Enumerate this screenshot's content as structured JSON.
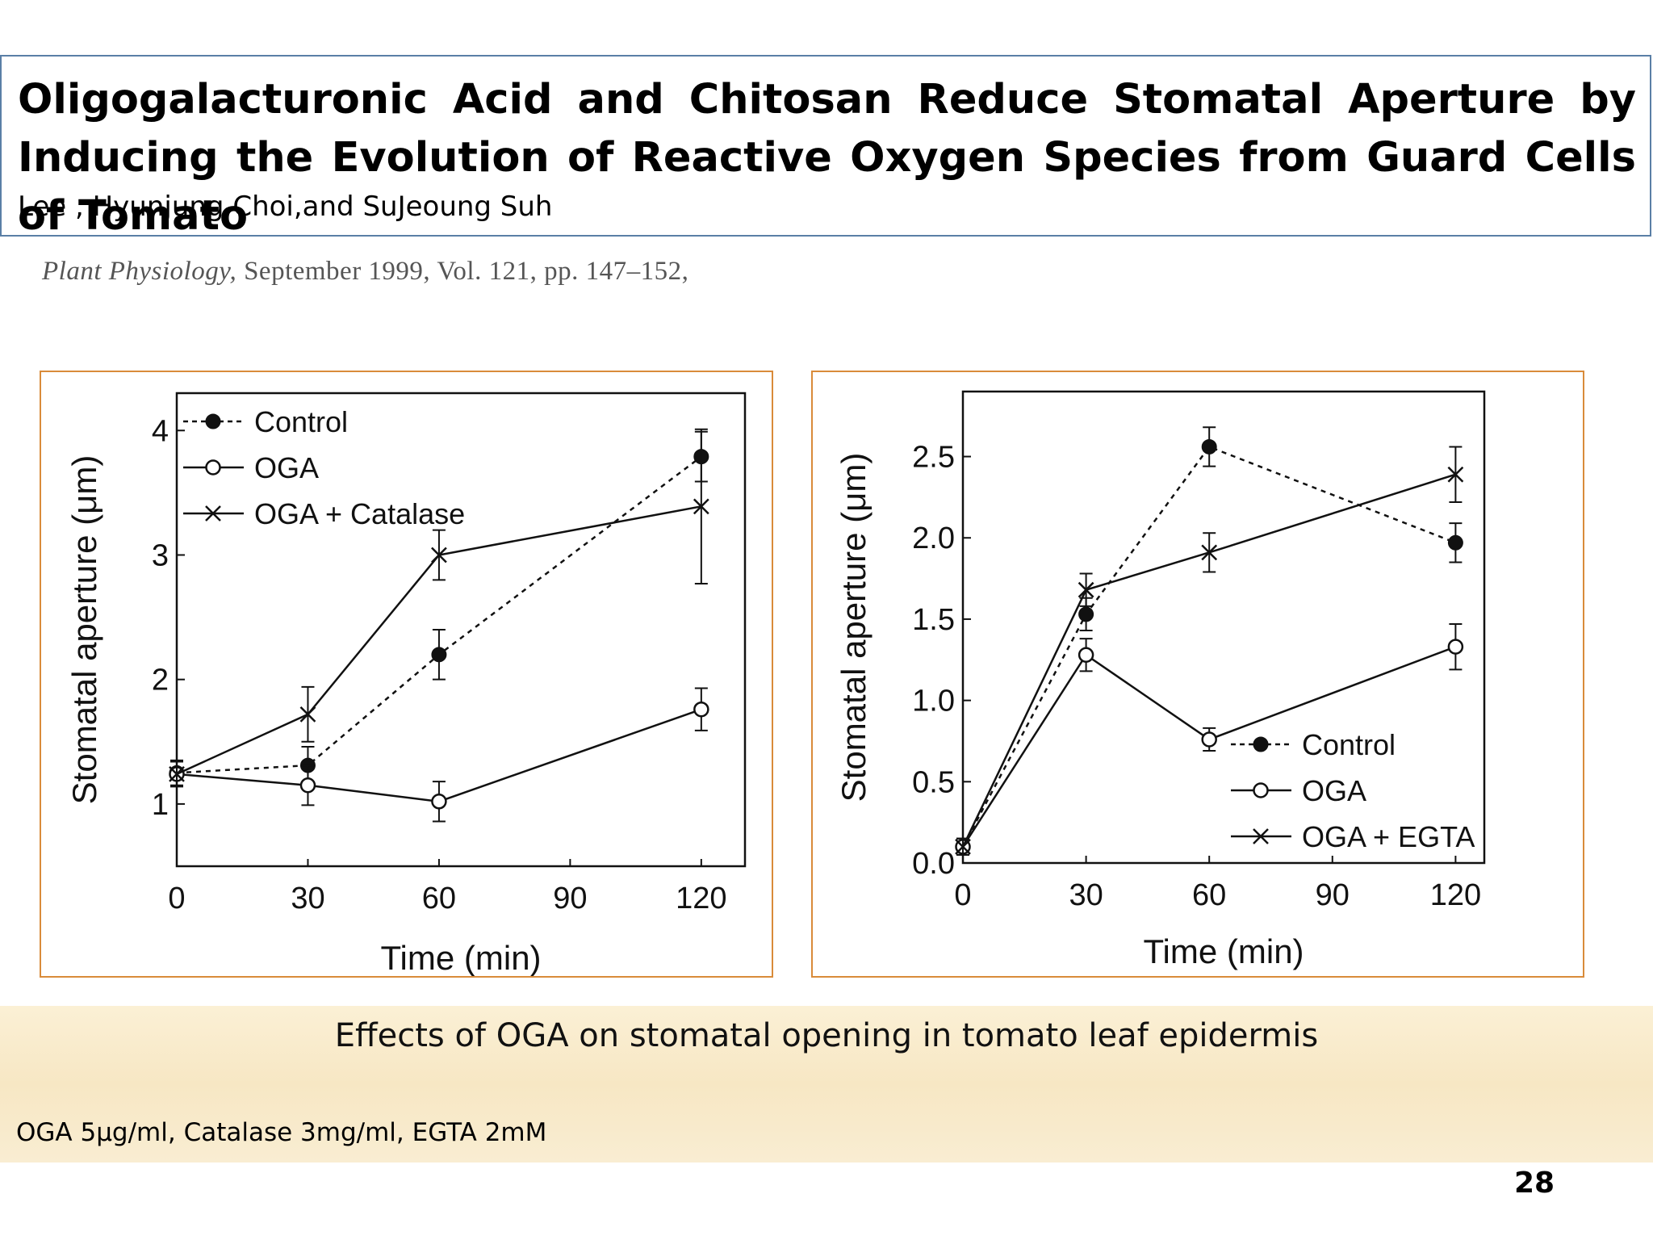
{
  "slide": {
    "title": "Oligogalacturonic Acid and Chitosan Reduce Stomatal Aperture by Inducing the Evolution of Reactive Oxygen Species from Guard Cells of Tomato",
    "authors": "Lee , Hyunjung Choi,and SuJeoung Suh",
    "citation_journal": "Plant Physiology,",
    "citation_rest": " September 1999, Vol. 121, pp. 147–152,",
    "caption": "Effects of OGA on stomatal opening in tomato leaf epidermis",
    "footnote": "OGA 5μg/ml, Catalase 3mg/ml, EGTA 2mM",
    "page_number": "28",
    "colors": {
      "title_border": "#5a7fa6",
      "chart_border": "#d98b3a",
      "band": "#f8ebcd"
    }
  },
  "chart_data": [
    {
      "type": "line",
      "xlabel": "Time (min)",
      "ylabel": "Stomatal aperture (μm)",
      "xlim": [
        0,
        130
      ],
      "ylim": [
        0.5,
        4.3
      ],
      "xticks": [
        0,
        30,
        60,
        90,
        120
      ],
      "yticks": [
        1,
        2,
        3,
        4
      ],
      "legend_position": "top-left",
      "series": [
        {
          "name": "Control",
          "marker": "filled-circle",
          "dash": true,
          "x": [
            0,
            30,
            60,
            120
          ],
          "y": [
            1.25,
            1.31,
            2.2,
            3.79
          ],
          "err": [
            0.1,
            0.15,
            0.2,
            0.2
          ]
        },
        {
          "name": "OGA",
          "marker": "open-circle",
          "dash": false,
          "x": [
            0,
            30,
            60,
            120
          ],
          "y": [
            1.24,
            1.15,
            1.02,
            1.76
          ],
          "err": [
            0.1,
            0.16,
            0.16,
            0.17
          ]
        },
        {
          "name": "OGA + Catalase",
          "marker": "x",
          "dash": false,
          "x": [
            0,
            30,
            60,
            120
          ],
          "y": [
            1.24,
            1.72,
            3.0,
            3.39
          ],
          "err": [
            0.1,
            0.22,
            0.2,
            0.62
          ]
        }
      ]
    },
    {
      "type": "line",
      "xlabel": "Time (min)",
      "ylabel": "Stomatal aperture (μm)",
      "xlim": [
        0,
        127
      ],
      "ylim": [
        0.0,
        2.9
      ],
      "xticks": [
        0,
        30,
        60,
        90,
        120
      ],
      "yticks": [
        "0.0",
        "0.5",
        "1.0",
        "1.5",
        "2.0",
        "2.5"
      ],
      "legend_position": "bottom-right",
      "series": [
        {
          "name": "Control",
          "marker": "filled-circle",
          "dash": true,
          "x": [
            0,
            30,
            60,
            120
          ],
          "y": [
            0.1,
            1.53,
            2.56,
            1.97
          ],
          "err": [
            0.05,
            0.1,
            0.12,
            0.12
          ]
        },
        {
          "name": "OGA",
          "marker": "open-circle",
          "dash": false,
          "x": [
            0,
            30,
            60,
            120
          ],
          "y": [
            0.1,
            1.28,
            0.76,
            1.33
          ],
          "err": [
            0.05,
            0.1,
            0.07,
            0.14
          ]
        },
        {
          "name": "OGA + EGTA",
          "marker": "x",
          "dash": false,
          "x": [
            0,
            30,
            60,
            120
          ],
          "y": [
            0.1,
            1.68,
            1.91,
            2.39
          ],
          "err": [
            0.05,
            0.1,
            0.12,
            0.17
          ]
        }
      ]
    }
  ]
}
